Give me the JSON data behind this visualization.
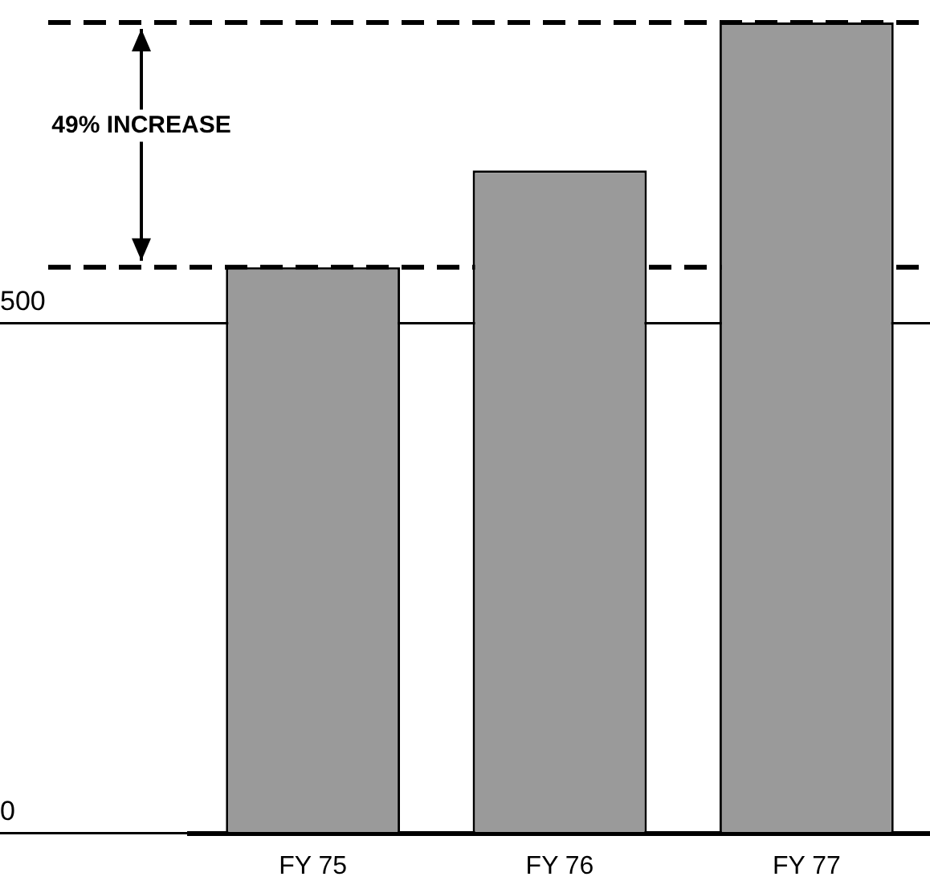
{
  "chart_data": {
    "type": "bar",
    "categories": [
      "FY 75",
      "FY 76",
      "FY 77"
    ],
    "values": [
      555,
      650,
      795
    ],
    "color": "#9a9a9a",
    "ylim": [
      0,
      795
    ],
    "yticks": [
      0,
      500
    ],
    "grid": "y",
    "ref_lines": [
      {
        "axis": "y",
        "value": 555,
        "line_style": "dashed",
        "color": "#000000"
      },
      {
        "axis": "y",
        "value": 795,
        "line_style": "dashed",
        "color": "#000000"
      }
    ],
    "annotations": [
      "49% INCREASE"
    ]
  }
}
